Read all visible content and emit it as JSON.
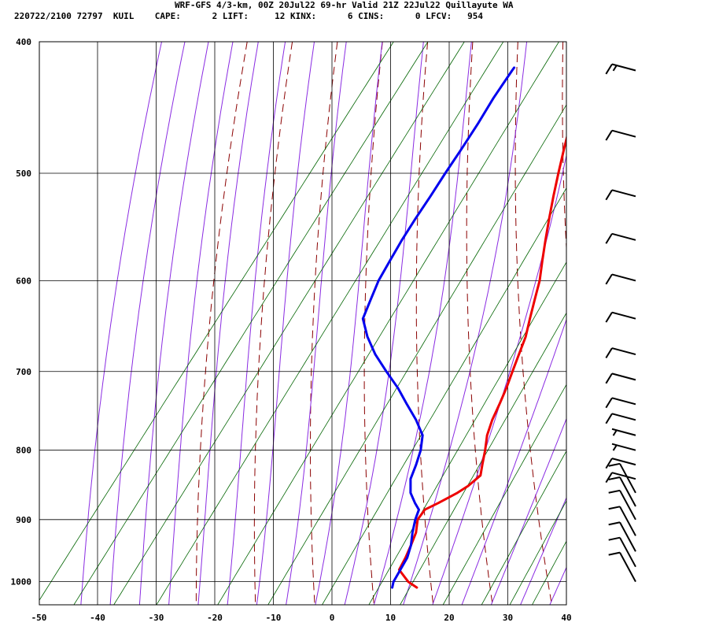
{
  "header": {
    "line1": "WRF-GFS 4/3-km, 00Z 20Jul22 69-hr Valid 21Z 22Jul22 Quillayute WA",
    "line2": "220722/2100 72797  KUIL    CAPE:      2 LIFT:     12 KINX:      6 CINS:      0 LFCV:   954"
  },
  "colors": {
    "temperature": "#ee0000",
    "dewpoint": "#0000ee",
    "dry_adiabat": "#8b0000",
    "moist_adiabat": "#8a2be2",
    "mixing_ratio": "#006400",
    "grid": "#000000",
    "wind_barb": "#000000"
  },
  "chart_data": {
    "type": "skew-t log-p",
    "x_axis": {
      "ticks": [
        -50,
        -40,
        -30,
        -20,
        -10,
        0,
        10,
        20,
        30,
        40
      ],
      "range": [
        -50,
        40
      ]
    },
    "y_axis": {
      "ticks": [
        400,
        500,
        600,
        700,
        800,
        900,
        1000
      ],
      "range": [
        400,
        1040
      ],
      "scale": "log"
    },
    "series": [
      {
        "key": "temperature",
        "points": [
          [
            1010,
            15.2
          ],
          [
            1000,
            13.0
          ],
          [
            980,
            10.0
          ],
          [
            960,
            9.6
          ],
          [
            940,
            9.0
          ],
          [
            920,
            8.3
          ],
          [
            900,
            7.0
          ],
          [
            885,
            7.0
          ],
          [
            875,
            8.5
          ],
          [
            860,
            10.5
          ],
          [
            850,
            11.5
          ],
          [
            835,
            12.3
          ],
          [
            820,
            11.3
          ],
          [
            800,
            10.0
          ],
          [
            780,
            8.5
          ],
          [
            760,
            7.5
          ],
          [
            740,
            6.8
          ],
          [
            720,
            6.0
          ],
          [
            700,
            5.0
          ],
          [
            680,
            4.0
          ],
          [
            660,
            3.0
          ],
          [
            640,
            1.5
          ],
          [
            620,
            0.0
          ],
          [
            600,
            -1.5
          ],
          [
            580,
            -3.5
          ],
          [
            560,
            -5.5
          ],
          [
            540,
            -7.5
          ],
          [
            520,
            -9.5
          ],
          [
            500,
            -11.5
          ],
          [
            480,
            -13.5
          ],
          [
            460,
            -15.5
          ],
          [
            440,
            -18.0
          ],
          [
            420,
            -20.5
          ],
          [
            418,
            -21.0
          ]
        ]
      },
      {
        "key": "dewpoint",
        "points": [
          [
            1010,
            11.0
          ],
          [
            1000,
            10.5
          ],
          [
            980,
            10.2
          ],
          [
            960,
            9.9
          ],
          [
            940,
            9.0
          ],
          [
            920,
            7.7
          ],
          [
            900,
            6.6
          ],
          [
            885,
            6.0
          ],
          [
            875,
            4.5
          ],
          [
            860,
            2.5
          ],
          [
            840,
            0.8
          ],
          [
            820,
            0.0
          ],
          [
            800,
            -1.0
          ],
          [
            780,
            -2.5
          ],
          [
            760,
            -5.5
          ],
          [
            740,
            -9.0
          ],
          [
            720,
            -12.5
          ],
          [
            700,
            -16.5
          ],
          [
            680,
            -20.5
          ],
          [
            660,
            -24.0
          ],
          [
            640,
            -27.0
          ],
          [
            620,
            -28.0
          ],
          [
            600,
            -29.0
          ],
          [
            580,
            -29.5
          ],
          [
            560,
            -30.0
          ],
          [
            540,
            -30.3
          ],
          [
            520,
            -30.5
          ],
          [
            500,
            -30.8
          ],
          [
            480,
            -31.0
          ],
          [
            460,
            -31.3
          ],
          [
            440,
            -31.8
          ],
          [
            420,
            -32.0
          ],
          [
            418,
            -32.0
          ]
        ]
      }
    ],
    "wind_barbs_speed_kt": [
      {
        "p": 1000,
        "spd": 10
      },
      {
        "p": 975,
        "spd": 10
      },
      {
        "p": 950,
        "spd": 10
      },
      {
        "p": 925,
        "spd": 10
      },
      {
        "p": 900,
        "spd": 10
      },
      {
        "p": 880,
        "spd": 10
      },
      {
        "p": 860,
        "spd": 10
      },
      {
        "p": 840,
        "spd": 10
      },
      {
        "p": 820,
        "spd": 10
      },
      {
        "p": 800,
        "spd": 5
      },
      {
        "p": 780,
        "spd": 5
      },
      {
        "p": 760,
        "spd": 10
      },
      {
        "p": 740,
        "spd": 10
      },
      {
        "p": 710,
        "spd": 10
      },
      {
        "p": 680,
        "spd": 10
      },
      {
        "p": 640,
        "spd": 10
      },
      {
        "p": 600,
        "spd": 10
      },
      {
        "p": 560,
        "spd": 10
      },
      {
        "p": 520,
        "spd": 10
      },
      {
        "p": 470,
        "spd": 10
      },
      {
        "p": 420,
        "spd": 15
      }
    ]
  }
}
